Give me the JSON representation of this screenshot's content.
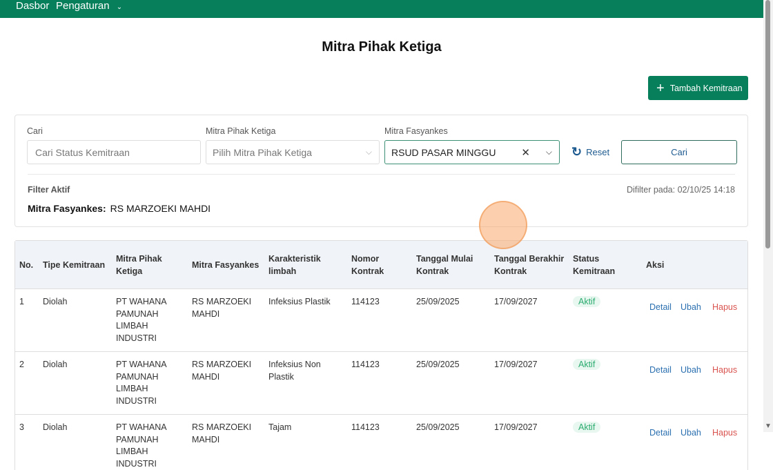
{
  "nav": {
    "items": [
      "Dasbor",
      "Pengaturan"
    ]
  },
  "page": {
    "title": "Mitra Pihak Ketiga",
    "add_button": "Tambah Kemitraan"
  },
  "filter": {
    "search_label": "Cari",
    "search_placeholder": "Cari Status Kemitraan",
    "mitra_label": "Mitra Pihak Ketiga",
    "mitra_placeholder": "Pilih Mitra Pihak Ketiga",
    "fasyankes_label": "Mitra Fasyankes",
    "fasyankes_value": "RSUD PASAR MINGGU",
    "reset": "Reset",
    "search_button": "Cari",
    "active_label": "Filter Aktif",
    "filtered_at": "Difilter pada: 02/10/25 14:18",
    "active_key": "Mitra Fasyankes:",
    "active_value": "RS MARZOEKI MAHDI"
  },
  "table": {
    "headers": [
      "No.",
      "Tipe Kemitraan",
      "Mitra Pihak Ketiga",
      "Mitra Fasyankes",
      "Karakteristik limbah",
      "Nomor Kontrak",
      "Tanggal Mulai Kontrak",
      "Tanggal Berakhir Kontrak",
      "Status Kemitraan",
      "Aksi"
    ],
    "rows": [
      {
        "no": "1",
        "tipe": "Diolah",
        "mitra": "PT WAHANA PAMUNAH LIMBAH INDUSTRI",
        "fasyankes": "RS MARZOEKI MAHDI",
        "karakteristik": "Infeksius Plastik",
        "nomor": "114123",
        "mulai": "25/09/2025",
        "berakhir": "17/09/2027",
        "status": "Aktif"
      },
      {
        "no": "2",
        "tipe": "Diolah",
        "mitra": "PT WAHANA PAMUNAH LIMBAH INDUSTRI",
        "fasyankes": "RS MARZOEKI MAHDI",
        "karakteristik": "Infeksius Non Plastik",
        "nomor": "114123",
        "mulai": "25/09/2025",
        "berakhir": "17/09/2027",
        "status": "Aktif"
      },
      {
        "no": "3",
        "tipe": "Diolah",
        "mitra": "PT WAHANA PAMUNAH LIMBAH INDUSTRI",
        "fasyankes": "RS MARZOEKI MAHDI",
        "karakteristik": "Tajam",
        "nomor": "114123",
        "mulai": "25/09/2025",
        "berakhir": "17/09/2027",
        "status": "Aktif"
      }
    ],
    "actions": {
      "detail": "Detail",
      "edit": "Ubah",
      "delete": "Hapus"
    }
  },
  "colors": {
    "brand": "#087f5b",
    "link": "#2a6fb0",
    "danger": "#d9534f",
    "active_badge": "#2bab6f"
  }
}
